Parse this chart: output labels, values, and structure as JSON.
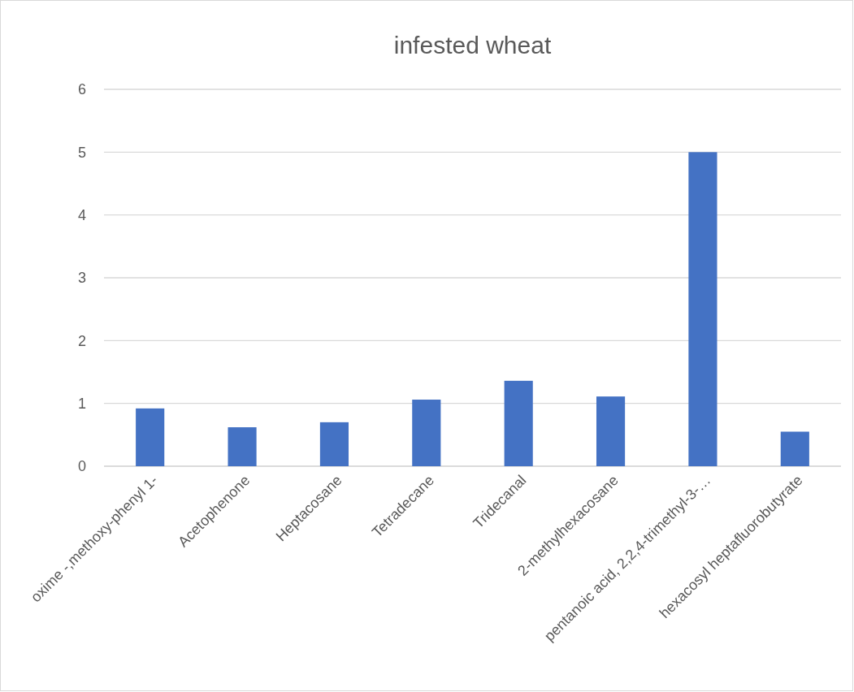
{
  "chart_data": {
    "type": "bar",
    "title": "infested wheat",
    "categories": [
      "oxime -,methoxy-phenyl 1-",
      "Acetophenone",
      "Heptacosane",
      "Tetradecane",
      "Tridecanal",
      "2-methylhexacosane",
      "pentanoic acid, 2,2,4-trimethyl-3-…",
      "hexacosyl heptafluorobutyrate"
    ],
    "values": [
      0.92,
      0.62,
      0.7,
      1.06,
      1.36,
      1.11,
      5.0,
      0.55
    ],
    "color": "#4472c4",
    "ylim": [
      0,
      6
    ],
    "yticks": [
      0,
      1,
      2,
      3,
      4,
      5,
      6
    ],
    "grid": "y"
  }
}
